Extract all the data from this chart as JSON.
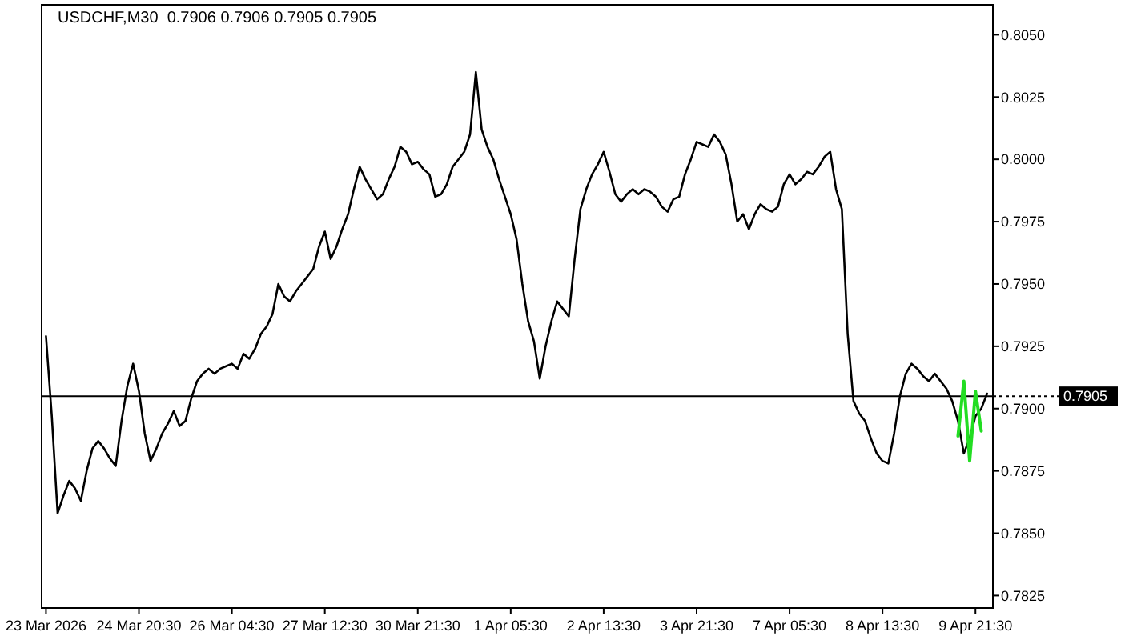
{
  "chart_data": {
    "type": "line",
    "title": "USDCHF,M30  0.7906 0.7906 0.7905 0.7905",
    "grid": false,
    "marker": "none",
    "line_style": "solid",
    "categories": [
      "23 Mar 2026",
      null,
      null,
      null,
      null,
      null,
      null,
      null,
      null,
      null,
      null,
      null,
      null,
      null,
      null,
      null,
      "24 Mar 20:30",
      null,
      null,
      null,
      null,
      null,
      null,
      null,
      null,
      null,
      null,
      null,
      null,
      null,
      null,
      null,
      "26 Mar 04:30",
      null,
      null,
      null,
      null,
      null,
      null,
      null,
      null,
      null,
      null,
      null,
      null,
      null,
      null,
      null,
      "27 Mar 12:30",
      null,
      null,
      null,
      null,
      null,
      null,
      null,
      null,
      null,
      null,
      null,
      null,
      null,
      null,
      null,
      "30 Mar 21:30",
      null,
      null,
      null,
      null,
      null,
      null,
      null,
      null,
      null,
      null,
      null,
      null,
      null,
      null,
      null,
      "1 Apr 05:30",
      null,
      null,
      null,
      null,
      null,
      null,
      null,
      null,
      null,
      null,
      null,
      null,
      null,
      null,
      null,
      "2 Apr 13:30",
      null,
      null,
      null,
      null,
      null,
      null,
      null,
      null,
      null,
      null,
      null,
      null,
      null,
      null,
      null,
      "3 Apr 21:30",
      null,
      null,
      null,
      null,
      null,
      null,
      null,
      null,
      null,
      null,
      null,
      null,
      null,
      null,
      null,
      "7 Apr 05:30",
      null,
      null,
      null,
      null,
      null,
      null,
      null,
      null,
      null,
      null,
      null,
      null,
      null,
      null,
      null,
      "8 Apr 13:30",
      null,
      null,
      null,
      null,
      null,
      null,
      null,
      null,
      null,
      null,
      null,
      null,
      null,
      null,
      null,
      "9 Apr 21:30",
      null,
      null
    ],
    "ylim": [
      0.782,
      0.8062
    ],
    "yticks": [
      {
        "value": 0.7825,
        "label": "0.7825"
      },
      {
        "value": 0.785,
        "label": "0.7850"
      },
      {
        "value": 0.7875,
        "label": "0.7875"
      },
      {
        "value": 0.79,
        "label": "0.7900"
      },
      {
        "value": 0.7925,
        "label": "0.7925"
      },
      {
        "value": 0.795,
        "label": "0.7950"
      },
      {
        "value": 0.7975,
        "label": "0.7975"
      },
      {
        "value": 0.8,
        "label": "0.8000"
      },
      {
        "value": 0.8025,
        "label": "0.8025"
      },
      {
        "value": 0.805,
        "label": "0.8050"
      }
    ],
    "ref_lines": [
      {
        "axis": "y",
        "value": 0.7905,
        "label": "0.7905",
        "color": "#000000"
      }
    ],
    "series": [
      {
        "color": "#000000",
        "values": [
          0.7929,
          0.7897,
          0.7858,
          0.7865,
          0.7871,
          0.7868,
          0.7863,
          0.7875,
          0.7884,
          0.7887,
          0.7884,
          0.788,
          0.7877,
          0.7895,
          0.7909,
          0.7918,
          0.7907,
          0.789,
          0.7879,
          0.7884,
          0.789,
          0.7894,
          0.7899,
          0.7893,
          0.7895,
          0.7904,
          0.7911,
          0.7914,
          0.7916,
          0.7914,
          0.7916,
          0.7917,
          0.7918,
          0.7916,
          0.7922,
          0.792,
          0.7924,
          0.793,
          0.7933,
          0.7938,
          0.795,
          0.7945,
          0.7943,
          0.7947,
          0.795,
          0.7953,
          0.7956,
          0.7965,
          0.7971,
          0.796,
          0.7965,
          0.7972,
          0.7978,
          0.7988,
          0.7997,
          0.7992,
          0.7988,
          0.7984,
          0.7986,
          0.7992,
          0.7997,
          0.8005,
          0.8003,
          0.7998,
          0.7999,
          0.7996,
          0.7994,
          0.7985,
          0.7986,
          0.799,
          0.7997,
          0.8,
          0.8003,
          0.801,
          0.8035,
          0.8012,
          0.8005,
          0.8,
          0.7992,
          0.7985,
          0.7978,
          0.7968,
          0.795,
          0.7935,
          0.7927,
          0.7912,
          0.7925,
          0.7935,
          0.7943,
          0.794,
          0.7937,
          0.796,
          0.798,
          0.7988,
          0.7994,
          0.7998,
          0.8003,
          0.7995,
          0.7986,
          0.7983,
          0.7986,
          0.7988,
          0.7986,
          0.7988,
          0.7987,
          0.7985,
          0.7981,
          0.7979,
          0.7984,
          0.7985,
          0.7994,
          0.8,
          0.8007,
          0.8006,
          0.8005,
          0.801,
          0.8007,
          0.8002,
          0.799,
          0.7975,
          0.7978,
          0.7972,
          0.7978,
          0.7982,
          0.798,
          0.7979,
          0.7981,
          0.799,
          0.7994,
          0.799,
          0.7992,
          0.7995,
          0.7994,
          0.7997,
          0.8001,
          0.8003,
          0.7988,
          0.798,
          0.793,
          0.7903,
          0.7898,
          0.7895,
          0.7888,
          0.7882,
          0.7879,
          0.7878,
          0.789,
          0.7905,
          0.7914,
          0.7918,
          0.7916,
          0.7913,
          0.7911,
          0.7914,
          0.7911,
          0.7908,
          0.7903,
          0.7895,
          0.7882,
          0.7888,
          0.7897,
          0.79,
          0.7906
        ]
      },
      {
        "color": "#22dd22",
        "values": [
          null,
          null,
          null,
          null,
          null,
          null,
          null,
          null,
          null,
          null,
          null,
          null,
          null,
          null,
          null,
          null,
          null,
          null,
          null,
          null,
          null,
          null,
          null,
          null,
          null,
          null,
          null,
          null,
          null,
          null,
          null,
          null,
          null,
          null,
          null,
          null,
          null,
          null,
          null,
          null,
          null,
          null,
          null,
          null,
          null,
          null,
          null,
          null,
          null,
          null,
          null,
          null,
          null,
          null,
          null,
          null,
          null,
          null,
          null,
          null,
          null,
          null,
          null,
          null,
          null,
          null,
          null,
          null,
          null,
          null,
          null,
          null,
          null,
          null,
          null,
          null,
          null,
          null,
          null,
          null,
          null,
          null,
          null,
          null,
          null,
          null,
          null,
          null,
          null,
          null,
          null,
          null,
          null,
          null,
          null,
          null,
          null,
          null,
          null,
          null,
          null,
          null,
          null,
          null,
          null,
          null,
          null,
          null,
          null,
          null,
          null,
          null,
          null,
          null,
          null,
          null,
          null,
          null,
          null,
          null,
          null,
          null,
          null,
          null,
          null,
          null,
          null,
          null,
          null,
          null,
          null,
          null,
          null,
          null,
          null,
          null,
          null,
          null,
          null,
          null,
          null,
          null,
          null,
          null,
          null,
          null,
          null,
          null,
          null,
          null,
          null,
          null,
          null,
          null,
          null,
          null,
          null,
          0.7889,
          0.7911,
          0.7879,
          0.7907,
          0.7891,
          null
        ]
      }
    ]
  }
}
